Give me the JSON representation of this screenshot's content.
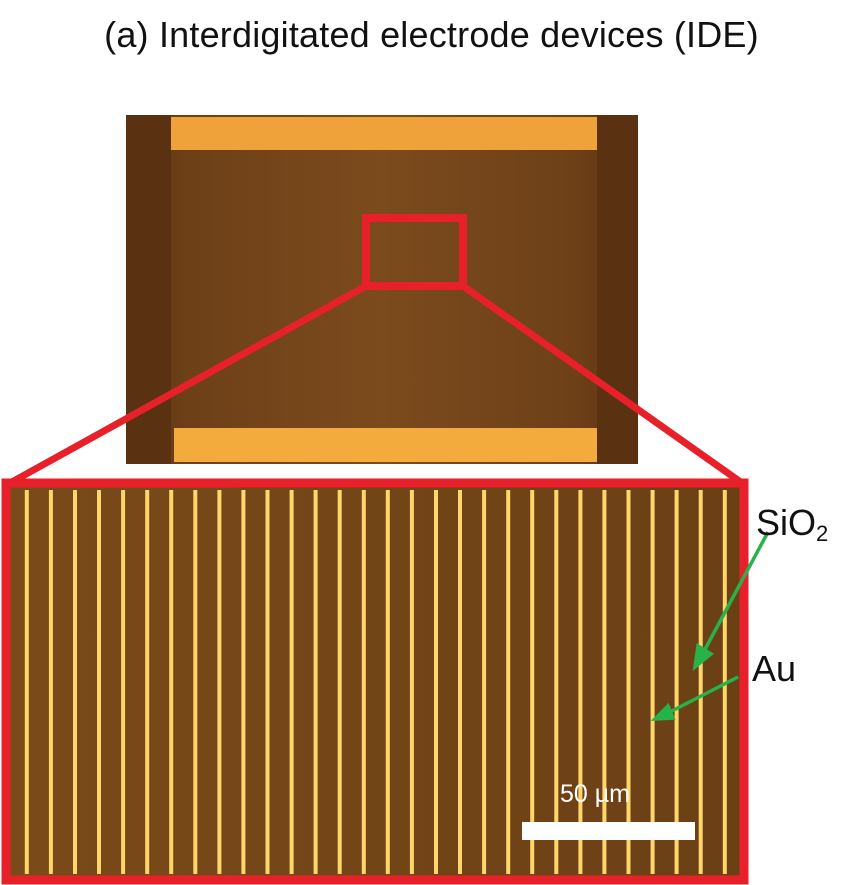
{
  "title": "(a) Interdigitated electrode devices (IDE)",
  "labels": {
    "sio2_main": "SiO",
    "sio2_sub": "2",
    "au": "Au"
  },
  "scale_bar": {
    "label": "50 µm"
  },
  "colors": {
    "substrate_dark": "#5e3412",
    "substrate": "#7a4a1c",
    "electrode": "#f2a93b",
    "finger": "#ffd66b",
    "zoom_box": "#e8202a",
    "arrow": "#27b34a"
  },
  "electrode_fingers": 30
}
